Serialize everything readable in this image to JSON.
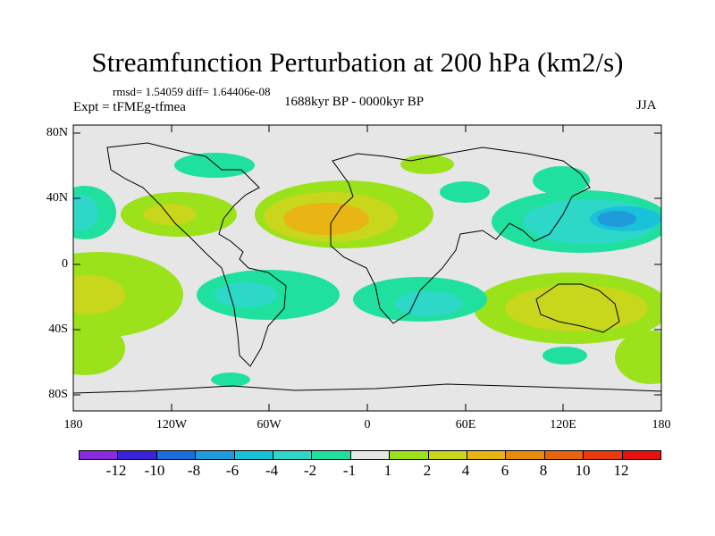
{
  "title": "Streamfunction Perturbation at 200 hPa (km2/s)",
  "stats": "rmsd= 1.54059 diff= 1.64406e-08",
  "expt": "Expt = tFMEg-tfmea",
  "period": "1688kyr BP - 0000kyr BP",
  "season": "JJA",
  "lat_labels": [
    "80N",
    "40N",
    "0",
    "40S",
    "80S"
  ],
  "lon_labels": [
    "180",
    "120W",
    "60W",
    "0",
    "60E",
    "120E",
    "180"
  ],
  "colorbar": {
    "labels": [
      "-12",
      "-10",
      "-8",
      "-6",
      "-4",
      "-2",
      "-1",
      "1",
      "2",
      "4",
      "6",
      "8",
      "10",
      "12"
    ],
    "colors": [
      "#8a2be2",
      "#3a22d9",
      "#1a6fe0",
      "#1f9bdc",
      "#19c1d9",
      "#2dd8c9",
      "#20e0a0",
      "#e6e6e6",
      "#9be21a",
      "#c8d61c",
      "#e8b514",
      "#e88a10",
      "#e86410",
      "#e83a0c",
      "#e81010"
    ]
  },
  "legend_levels": [
    "<-12",
    "-12 to -10",
    "-10 to -8",
    "-8 to -6",
    "-6 to -4",
    "-4 to -2",
    "-2 to -1",
    "-1 to 1",
    "1 to 2",
    "2 to 4",
    "4 to 6",
    "6 to 8",
    "8 to 10",
    "10 to 12",
    ">12"
  ]
}
